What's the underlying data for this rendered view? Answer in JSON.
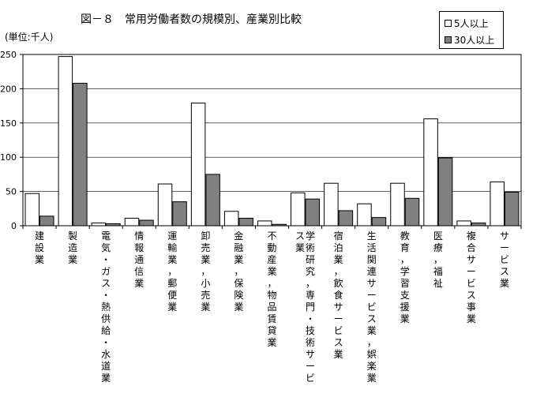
{
  "header": {
    "title": "図－８　常用労働者数の規模別、産業別比較",
    "unit": "(単位:千人)"
  },
  "colors": {
    "series1_fill": "#ffffff",
    "series2_fill": "#808080",
    "axis": "#000000",
    "grid": "#000000"
  },
  "chart_data": {
    "type": "bar",
    "title": "図－８　常用労働者数の規模別、産業別比較",
    "ylabel": "(単位:千人)",
    "ylim": [
      0,
      250
    ],
    "yticks": [
      "0",
      "50",
      "100",
      "150",
      "200",
      "250"
    ],
    "grid": true,
    "legend_position": "top-right",
    "categories": [
      "建設業",
      "製造業",
      "電気・ガス・熱供給・水道業",
      "情報通信業",
      "運輸業，郵便業",
      "卸売業，小売業",
      "金融業，保険業",
      "不動産業，物品賃貸業",
      "学術研究，専門・技術サービス業",
      "宿泊業，飲食サービス業",
      "生活関連サービス業，娯楽業",
      "教育，学習支援業",
      "医療，福祉",
      "複合サービス事業",
      "サービス業"
    ],
    "series": [
      {
        "name": "5人以上",
        "values": [
          47,
          247,
          4,
          11,
          61,
          179,
          21,
          7,
          48,
          62,
          32,
          62,
          156,
          7,
          64
        ]
      },
      {
        "name": "30人以上",
        "values": [
          14,
          208,
          3,
          8,
          35,
          75,
          11,
          2,
          39,
          22,
          12,
          40,
          99,
          4,
          49
        ]
      }
    ]
  }
}
